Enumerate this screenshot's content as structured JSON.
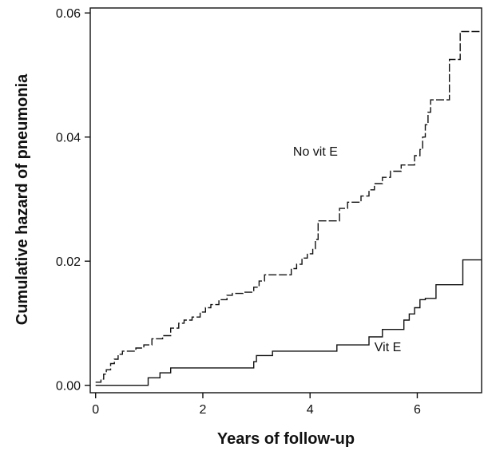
{
  "chart_data": {
    "type": "line",
    "title": "",
    "xlabel": "Years of follow-up",
    "ylabel": "Cumulative hazard of pneumonia",
    "xlim": [
      -0.1,
      7.2
    ],
    "ylim": [
      -0.0012,
      0.0608
    ],
    "x_ticks": [
      0,
      2,
      4,
      6
    ],
    "y_ticks": [
      0.0,
      0.02,
      0.04,
      0.06
    ],
    "x_tick_labels": [
      "0",
      "2",
      "4",
      "6"
    ],
    "y_tick_labels": [
      "0.00",
      "0.02",
      "0.04",
      "0.06"
    ],
    "grid": false,
    "legend": "none",
    "series": [
      {
        "name": "No vit E",
        "style": "dashed-step",
        "color": "#111111",
        "x": [
          0.0,
          0.1,
          0.15,
          0.2,
          0.28,
          0.35,
          0.42,
          0.5,
          0.6,
          0.75,
          0.9,
          1.05,
          1.25,
          1.4,
          1.55,
          1.65,
          1.8,
          1.95,
          2.05,
          2.15,
          2.3,
          2.45,
          2.55,
          2.75,
          2.95,
          3.05,
          3.15,
          3.45,
          3.65,
          3.75,
          3.85,
          3.95,
          4.05,
          4.1,
          4.15,
          4.4,
          4.55,
          4.7,
          4.95,
          5.1,
          5.2,
          5.35,
          5.5,
          5.7,
          5.95,
          6.05,
          6.1,
          6.15,
          6.2,
          6.25,
          6.45,
          6.6,
          6.75,
          6.8,
          7.2
        ],
        "y": [
          0.0005,
          0.001,
          0.0018,
          0.0025,
          0.0035,
          0.0042,
          0.005,
          0.0055,
          0.0055,
          0.006,
          0.0065,
          0.0075,
          0.008,
          0.0092,
          0.01,
          0.0105,
          0.011,
          0.0118,
          0.0125,
          0.013,
          0.0138,
          0.0145,
          0.0148,
          0.015,
          0.0158,
          0.0168,
          0.0178,
          0.0178,
          0.0188,
          0.0195,
          0.0205,
          0.0212,
          0.022,
          0.0235,
          0.0265,
          0.0265,
          0.0285,
          0.0295,
          0.0305,
          0.0315,
          0.0325,
          0.0335,
          0.0345,
          0.0355,
          0.037,
          0.038,
          0.04,
          0.042,
          0.044,
          0.046,
          0.046,
          0.0525,
          0.0525,
          0.057,
          0.057
        ]
      },
      {
        "name": "Vit E",
        "style": "solid-step",
        "color": "#111111",
        "x": [
          0.0,
          0.98,
          1.05,
          1.2,
          1.4,
          2.95,
          3.0,
          3.3,
          4.5,
          5.1,
          5.35,
          5.75,
          5.85,
          5.95,
          6.05,
          6.15,
          6.35,
          6.6,
          6.85,
          7.2
        ],
        "y": [
          0.0,
          0.0012,
          0.0012,
          0.002,
          0.0028,
          0.0038,
          0.0048,
          0.0055,
          0.0065,
          0.0078,
          0.009,
          0.0105,
          0.0115,
          0.0125,
          0.0138,
          0.014,
          0.0162,
          0.0162,
          0.0202,
          0.0202
        ]
      }
    ],
    "annotations": [
      {
        "text": "No vit E",
        "x": 4.1,
        "y": 0.037
      },
      {
        "text": "Vit E",
        "x": 5.45,
        "y": 0.0055
      }
    ]
  }
}
